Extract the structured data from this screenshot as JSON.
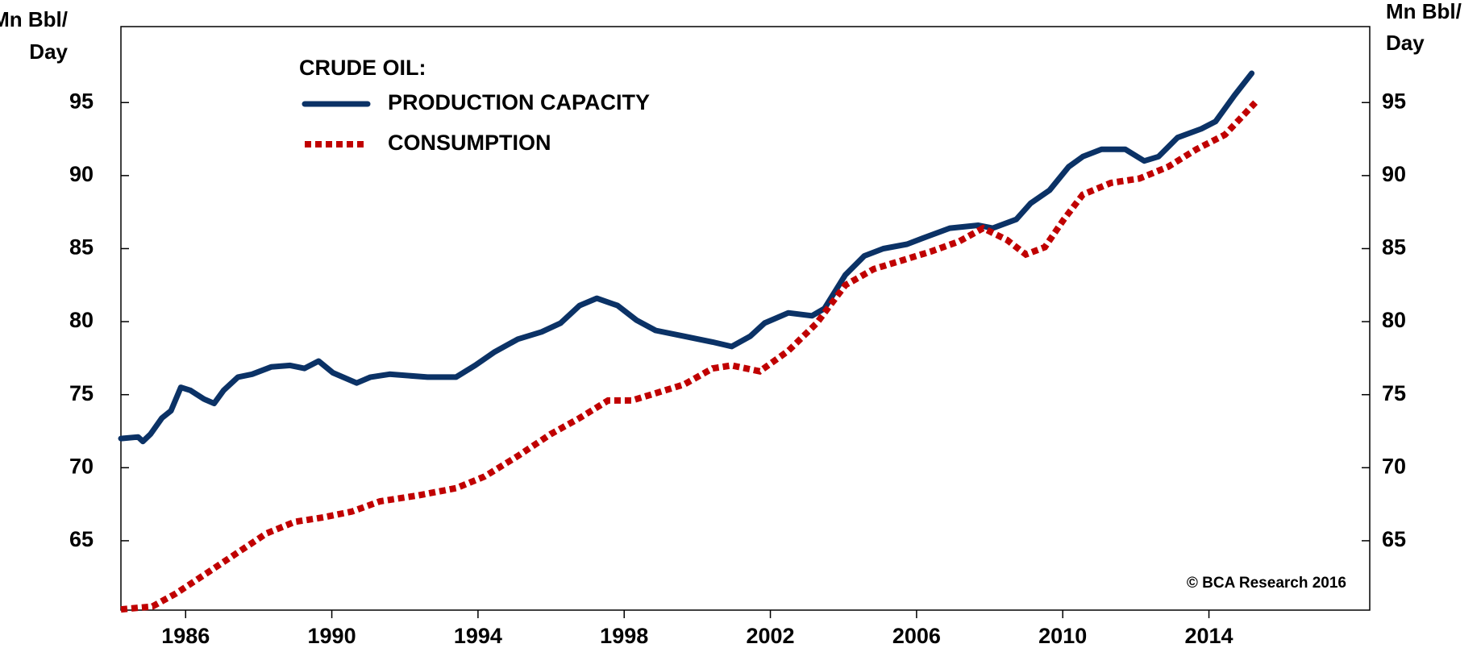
{
  "chart_data": {
    "type": "line",
    "y_label": [
      "Mn Bbl/",
      "Day"
    ],
    "y2_label": [
      "Mn Bbl/",
      "Day"
    ],
    "legend_title": "CRUDE OIL:",
    "annotation": "© BCA Research 2016",
    "xlim": [
      1984.23,
      2018.4
    ],
    "xticks": [
      1986,
      1990,
      1994,
      1998,
      2002,
      2006,
      2010,
      2014
    ],
    "ylim": [
      60.25,
      100.2
    ],
    "yticks": [
      65,
      70,
      75,
      80,
      85,
      90,
      95
    ],
    "y2lim": [
      60.25,
      100.2
    ],
    "y2ticks": [
      65,
      70,
      75,
      80,
      85,
      90,
      95
    ],
    "series": [
      {
        "name": "PRODUCTION CAPACITY",
        "color": "#0b3266",
        "style": "solid",
        "x": [
          1984.23,
          1984.7,
          1984.83,
          1985.04,
          1985.35,
          1985.6,
          1985.87,
          1986.13,
          1986.5,
          1986.78,
          1987.04,
          1987.43,
          1987.82,
          1988.34,
          1988.86,
          1989.25,
          1989.64,
          1990.03,
          1990.68,
          1991.06,
          1991.58,
          1992.62,
          1993.4,
          1993.92,
          1994.44,
          1995.09,
          1995.74,
          1996.26,
          1996.78,
          1997.25,
          1997.82,
          1998.34,
          1998.86,
          1999.64,
          2000.42,
          2000.94,
          2001.45,
          2001.84,
          2002.49,
          2003.14,
          2003.48,
          2004.05,
          2004.57,
          2005.09,
          2005.74,
          2006.26,
          2006.91,
          2007.69,
          2008.08,
          2008.73,
          2009.12,
          2009.64,
          2010.16,
          2010.55,
          2011.06,
          2011.71,
          2012.23,
          2012.62,
          2013.14,
          2013.79,
          2014.18,
          2014.7,
          2015.17
        ],
        "values": [
          72.0,
          72.1,
          71.8,
          72.3,
          73.4,
          73.9,
          75.5,
          75.3,
          74.7,
          74.4,
          75.3,
          76.2,
          76.4,
          76.9,
          77.0,
          76.8,
          77.3,
          76.5,
          75.8,
          76.2,
          76.4,
          76.2,
          76.2,
          77.0,
          77.9,
          78.8,
          79.3,
          79.9,
          81.1,
          81.6,
          81.1,
          80.1,
          79.4,
          79.0,
          78.6,
          78.3,
          79.0,
          79.9,
          80.6,
          80.4,
          80.9,
          83.2,
          84.5,
          85.0,
          85.3,
          85.8,
          86.4,
          86.6,
          86.4,
          87.0,
          88.1,
          89.0,
          90.6,
          91.3,
          91.8,
          91.8,
          91.0,
          91.3,
          92.6,
          93.2,
          93.7,
          95.5,
          97.0
        ]
      },
      {
        "name": "CONSUMPTION",
        "color": "#c00000",
        "style": "dotted",
        "x": [
          1984.23,
          1985.09,
          1985.74,
          1986.65,
          1987.43,
          1988.21,
          1988.99,
          1989.77,
          1990.55,
          1991.32,
          1992.36,
          1993.4,
          1994.18,
          1995.09,
          1995.99,
          1996.78,
          1997.56,
          1998.21,
          1998.86,
          1999.64,
          2000.42,
          2000.94,
          2001.71,
          2002.49,
          2003.27,
          2004.05,
          2004.83,
          2005.61,
          2006.39,
          2007.17,
          2007.82,
          2008.47,
          2008.99,
          2009.51,
          2010.03,
          2010.55,
          2011.32,
          2012.1,
          2012.88,
          2013.66,
          2014.44,
          2015.27
        ],
        "values": [
          60.3,
          60.5,
          61.4,
          62.9,
          64.2,
          65.5,
          66.3,
          66.6,
          67.0,
          67.7,
          68.1,
          68.6,
          69.4,
          70.8,
          72.3,
          73.4,
          74.6,
          74.6,
          75.1,
          75.7,
          76.8,
          77.0,
          76.6,
          78.0,
          79.9,
          82.5,
          83.6,
          84.2,
          84.8,
          85.5,
          86.4,
          85.6,
          84.6,
          85.1,
          87.0,
          88.7,
          89.5,
          89.8,
          90.6,
          91.8,
          92.8,
          95.0
        ]
      }
    ]
  }
}
